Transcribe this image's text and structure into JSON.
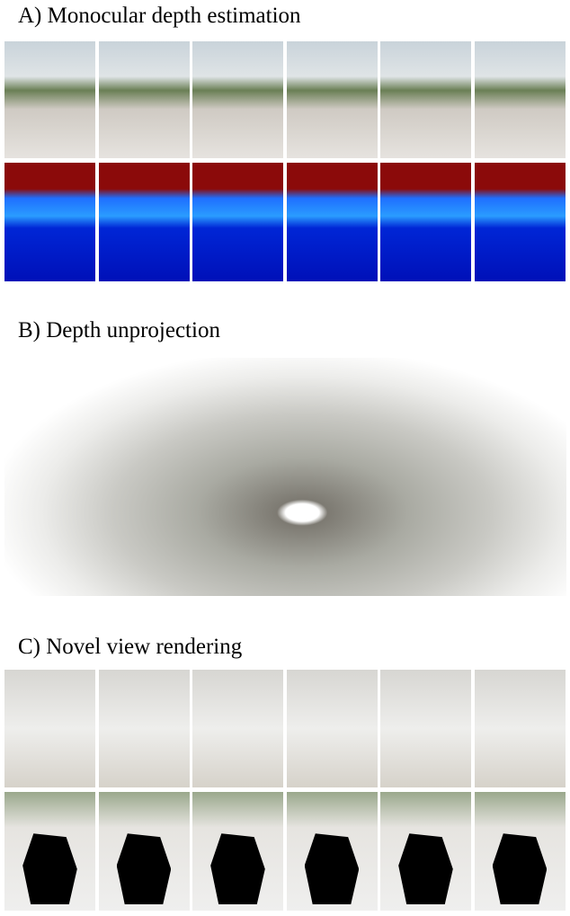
{
  "sections": [
    {
      "title": "A) Monocular depth estimation"
    },
    {
      "title": "B) Depth unprojection"
    },
    {
      "title": "C) Novel view rendering"
    }
  ]
}
